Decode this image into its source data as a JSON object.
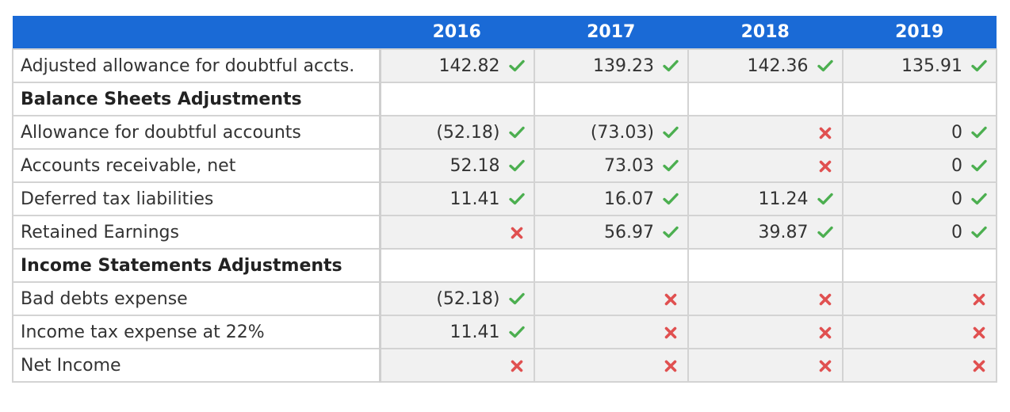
{
  "colors": {
    "header_bg": "#1a6ad6",
    "check": "#4caf50",
    "cross": "#e05050"
  },
  "icons": {
    "check": "check-icon",
    "cross": "cross-icon"
  },
  "years": [
    "2016",
    "2017",
    "2018",
    "2019"
  ],
  "rows": [
    {
      "label": "Adjusted allowance for doubtful accts.",
      "section": false,
      "cells": [
        {
          "value": "142.82",
          "status": "check"
        },
        {
          "value": "139.23",
          "status": "check"
        },
        {
          "value": "142.36",
          "status": "check"
        },
        {
          "value": "135.91",
          "status": "check"
        }
      ]
    },
    {
      "label": "Balance Sheets Adjustments",
      "section": true,
      "cells": [
        {
          "value": "",
          "status": ""
        },
        {
          "value": "",
          "status": ""
        },
        {
          "value": "",
          "status": ""
        },
        {
          "value": "",
          "status": ""
        }
      ]
    },
    {
      "label": "Allowance for doubtful accounts",
      "section": false,
      "cells": [
        {
          "value": "(52.18)",
          "status": "check"
        },
        {
          "value": "(73.03)",
          "status": "check"
        },
        {
          "value": "",
          "status": "cross"
        },
        {
          "value": "0",
          "status": "check"
        }
      ]
    },
    {
      "label": "Accounts receivable, net",
      "section": false,
      "cells": [
        {
          "value": "52.18",
          "status": "check"
        },
        {
          "value": "73.03",
          "status": "check"
        },
        {
          "value": "",
          "status": "cross"
        },
        {
          "value": "0",
          "status": "check"
        }
      ]
    },
    {
      "label": "Deferred tax liabilities",
      "section": false,
      "cells": [
        {
          "value": "11.41",
          "status": "check"
        },
        {
          "value": "16.07",
          "status": "check"
        },
        {
          "value": "11.24",
          "status": "check"
        },
        {
          "value": "0",
          "status": "check"
        }
      ]
    },
    {
      "label": "Retained Earnings",
      "section": false,
      "cells": [
        {
          "value": "",
          "status": "cross"
        },
        {
          "value": "56.97",
          "status": "check"
        },
        {
          "value": "39.87",
          "status": "check"
        },
        {
          "value": "0",
          "status": "check"
        }
      ]
    },
    {
      "label": "Income Statements Adjustments",
      "section": true,
      "cells": [
        {
          "value": "",
          "status": ""
        },
        {
          "value": "",
          "status": ""
        },
        {
          "value": "",
          "status": ""
        },
        {
          "value": "",
          "status": ""
        }
      ]
    },
    {
      "label": "Bad debts expense",
      "section": false,
      "cells": [
        {
          "value": "(52.18)",
          "status": "check"
        },
        {
          "value": "",
          "status": "cross"
        },
        {
          "value": "",
          "status": "cross"
        },
        {
          "value": "",
          "status": "cross"
        }
      ]
    },
    {
      "label": "Income tax expense at 22%",
      "section": false,
      "cells": [
        {
          "value": "11.41",
          "status": "check"
        },
        {
          "value": "",
          "status": "cross"
        },
        {
          "value": "",
          "status": "cross"
        },
        {
          "value": "",
          "status": "cross"
        }
      ]
    },
    {
      "label": "Net Income",
      "section": false,
      "cells": [
        {
          "value": "",
          "status": "cross"
        },
        {
          "value": "",
          "status": "cross"
        },
        {
          "value": "",
          "status": "cross"
        },
        {
          "value": "",
          "status": "cross"
        }
      ]
    }
  ]
}
